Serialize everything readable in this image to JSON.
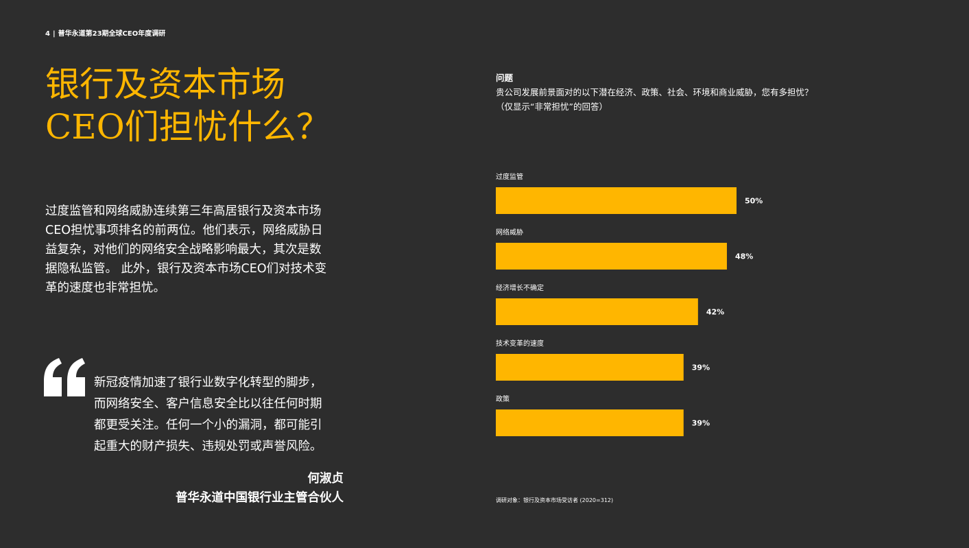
{
  "header": {
    "page_number": "4",
    "separator": "|",
    "report_title": "普华永道第23期全球CEO年度调研"
  },
  "title": {
    "line1": "银行及资本市场",
    "line2": "CEO们担忧什么？"
  },
  "intro": {
    "lines": [
      "过度监管和网络威胁连续第三年高居银行及资本市场",
      "CEO担忧事项排名的前两位。他们表示，网络威胁日",
      "益复杂，对他们的网络安全战略影响最大，其次是数",
      "据隐私监管。 此外，银行及资本市场CEO们对技术变",
      "革的速度也非常担忧。"
    ]
  },
  "quote": {
    "lines": [
      "新冠疫情加速了银行业数字化转型的脚步，",
      "而网络安全、客户信息安全比以往任何时期",
      "都更受关注。任何一个小的漏洞，都可能引",
      "起重大的财产损失、违规处罚或声誉风险。"
    ],
    "author": "何淑贞",
    "author_title": "普华永道中国银行业主管合伙人"
  },
  "question": {
    "label": "问题",
    "text": "贵公司发展前景面对的以下潜在经济、政策、社会、环境和商业威胁，您有多担忧？",
    "note": "（仅显示“非常担忧”的回答）"
  },
  "chart_data": {
    "type": "bar",
    "orientation": "horizontal",
    "categories": [
      "过度监管",
      "网络威胁",
      "经济增长不确定",
      "技术变革的速度",
      "政策"
    ],
    "values": [
      50,
      48,
      42,
      39,
      39
    ],
    "value_labels": [
      "50%",
      "48%",
      "42%",
      "39%",
      "39%"
    ],
    "unit": "%",
    "xlim": [
      0,
      100
    ],
    "grid": false,
    "legend": "none",
    "bar_color": "#ffb600"
  },
  "footnote": "调研对象：银行及资本市场受访者 (2020=312)",
  "colors": {
    "background": "#2d2d2d",
    "accent": "#ffb600",
    "text": "#ffffff"
  }
}
